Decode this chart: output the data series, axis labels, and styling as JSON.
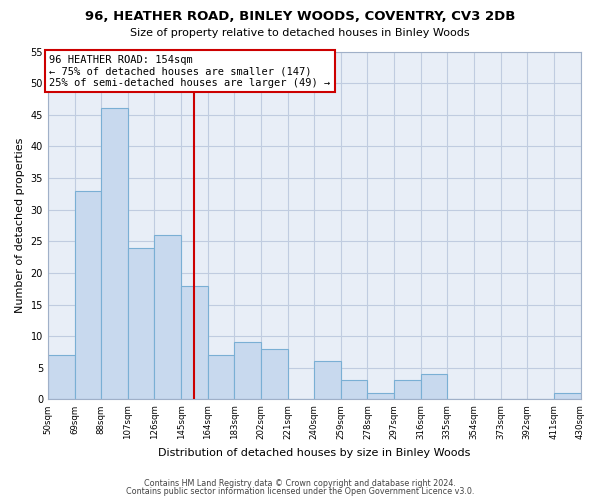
{
  "title": "96, HEATHER ROAD, BINLEY WOODS, COVENTRY, CV3 2DB",
  "subtitle": "Size of property relative to detached houses in Binley Woods",
  "xlabel": "Distribution of detached houses by size in Binley Woods",
  "ylabel": "Number of detached properties",
  "bin_edges": [
    50,
    69,
    88,
    107,
    126,
    145,
    164,
    183,
    202,
    221,
    240,
    259,
    278,
    297,
    316,
    335,
    354,
    373,
    392,
    411,
    430
  ],
  "counts": [
    7,
    33,
    46,
    24,
    26,
    18,
    7,
    9,
    8,
    0,
    6,
    3,
    1,
    3,
    4,
    0,
    0,
    0,
    0,
    1
  ],
  "bar_color": "#c8d9ee",
  "bar_edgecolor": "#7aafd4",
  "vline_x": 154,
  "vline_color": "#cc0000",
  "annotation_title": "96 HEATHER ROAD: 154sqm",
  "annotation_line1": "← 75% of detached houses are smaller (147)",
  "annotation_line2": "25% of semi-detached houses are larger (49) →",
  "annotation_box_edgecolor": "#cc0000",
  "ylim": [
    0,
    55
  ],
  "yticks": [
    0,
    5,
    10,
    15,
    20,
    25,
    30,
    35,
    40,
    45,
    50,
    55
  ],
  "tick_labels": [
    "50sqm",
    "69sqm",
    "88sqm",
    "107sqm",
    "126sqm",
    "145sqm",
    "164sqm",
    "183sqm",
    "202sqm",
    "221sqm",
    "240sqm",
    "259sqm",
    "278sqm",
    "297sqm",
    "316sqm",
    "335sqm",
    "354sqm",
    "373sqm",
    "392sqm",
    "411sqm",
    "430sqm"
  ],
  "footer1": "Contains HM Land Registry data © Crown copyright and database right 2024.",
  "footer2": "Contains public sector information licensed under the Open Government Licence v3.0.",
  "background_color": "#ffffff",
  "plot_bg_color": "#e8eef7",
  "grid_color": "#c0cce0",
  "spine_color": "#a0b0c8"
}
